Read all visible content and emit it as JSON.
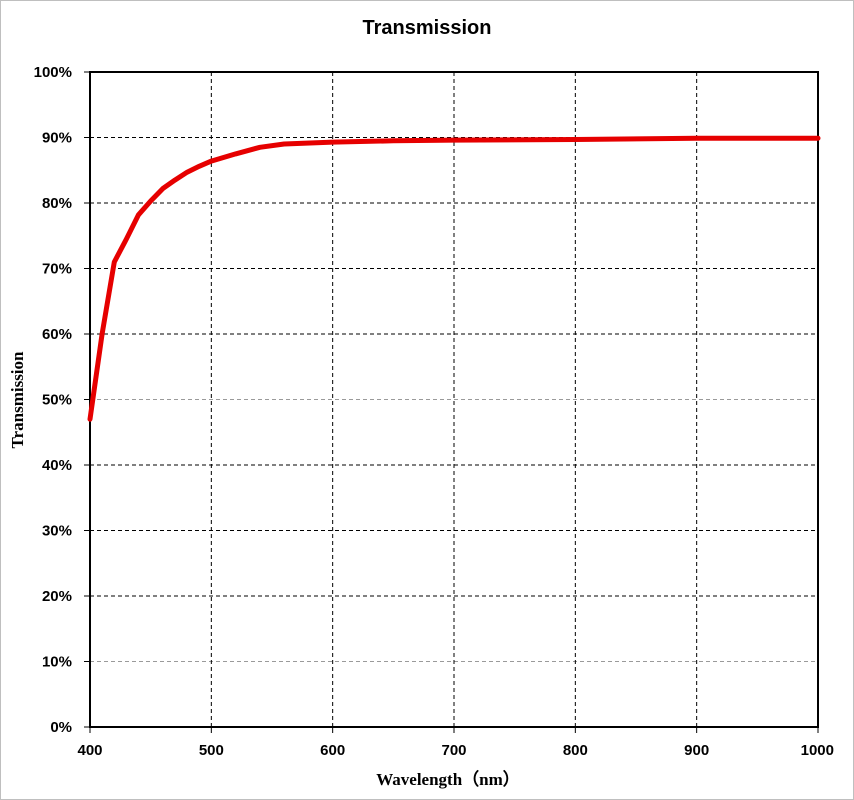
{
  "chart_data": {
    "type": "line",
    "title": "Transmission",
    "xlabel": "Wavelength（nm）",
    "ylabel": "Transmission",
    "xlim": [
      400,
      1000
    ],
    "ylim": [
      0,
      100
    ],
    "x_ticks": [
      "400",
      "500",
      "600",
      "700",
      "800",
      "900",
      "1000"
    ],
    "y_ticks": [
      "0%",
      "10%",
      "20%",
      "30%",
      "40%",
      "50%",
      "60%",
      "70%",
      "80%",
      "90%",
      "100%"
    ],
    "grid": true,
    "legend": "none",
    "series": [
      {
        "color": "#e60000",
        "x": [
          400,
          410,
          420,
          430,
          440,
          450,
          460,
          470,
          480,
          490,
          500,
          520,
          540,
          560,
          600,
          650,
          700,
          800,
          900,
          1000
        ],
        "y": [
          47,
          60,
          71,
          74.5,
          78.2,
          80.3,
          82.2,
          83.5,
          84.7,
          85.6,
          86.4,
          87.5,
          88.5,
          89.0,
          89.3,
          89.5,
          89.6,
          89.7,
          89.9,
          89.9
        ]
      }
    ]
  }
}
